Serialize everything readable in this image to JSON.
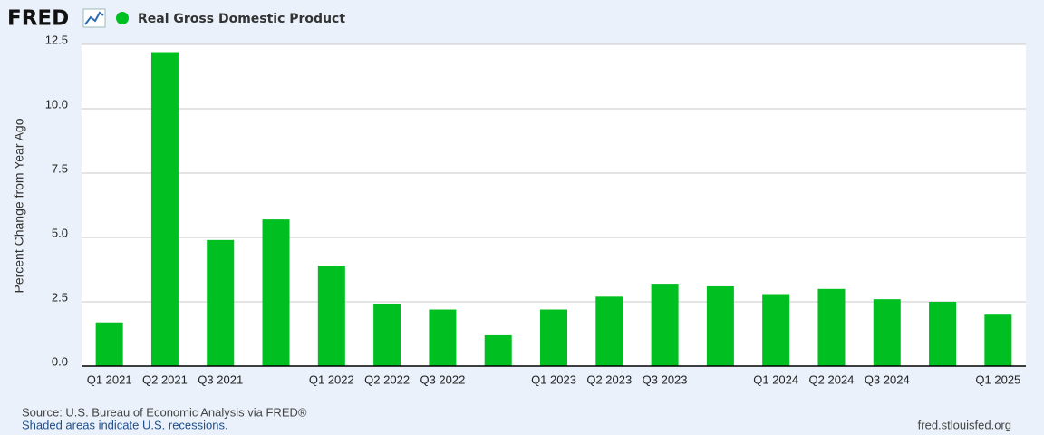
{
  "logo": "FRED",
  "chart_data": {
    "type": "bar",
    "title": "Real Gross Domestic Product",
    "y_label": "Percent Change from Year Ago",
    "categories": [
      "Q1 2021",
      "Q2 2021",
      "Q3 2021",
      null,
      "Q1 2022",
      "Q2 2022",
      "Q3 2022",
      null,
      "Q1 2023",
      "Q2 2023",
      "Q3 2023",
      null,
      "Q1 2024",
      "Q2 2024",
      "Q3 2024",
      null,
      "Q1 2025"
    ],
    "values": [
      1.7,
      12.2,
      4.9,
      5.7,
      3.9,
      2.4,
      2.2,
      1.2,
      2.2,
      2.7,
      3.2,
      3.1,
      2.8,
      3.0,
      2.6,
      2.5,
      2.0
    ],
    "color": "#00bf20",
    "ylim": [
      0,
      12.5
    ],
    "yticks": [
      {
        "value": 0,
        "label": "0.0"
      },
      2.5,
      {
        "value": 5,
        "label": "5.0"
      },
      7.5,
      {
        "value": 10,
        "label": "10.0"
      },
      12.5
    ],
    "grid": true
  },
  "footer": {
    "source": "Source: U.S. Bureau of Economic Analysis via FRED®",
    "note": "Shaded areas indicate U.S. recessions.",
    "url": "fred.stlouisfed.org"
  }
}
